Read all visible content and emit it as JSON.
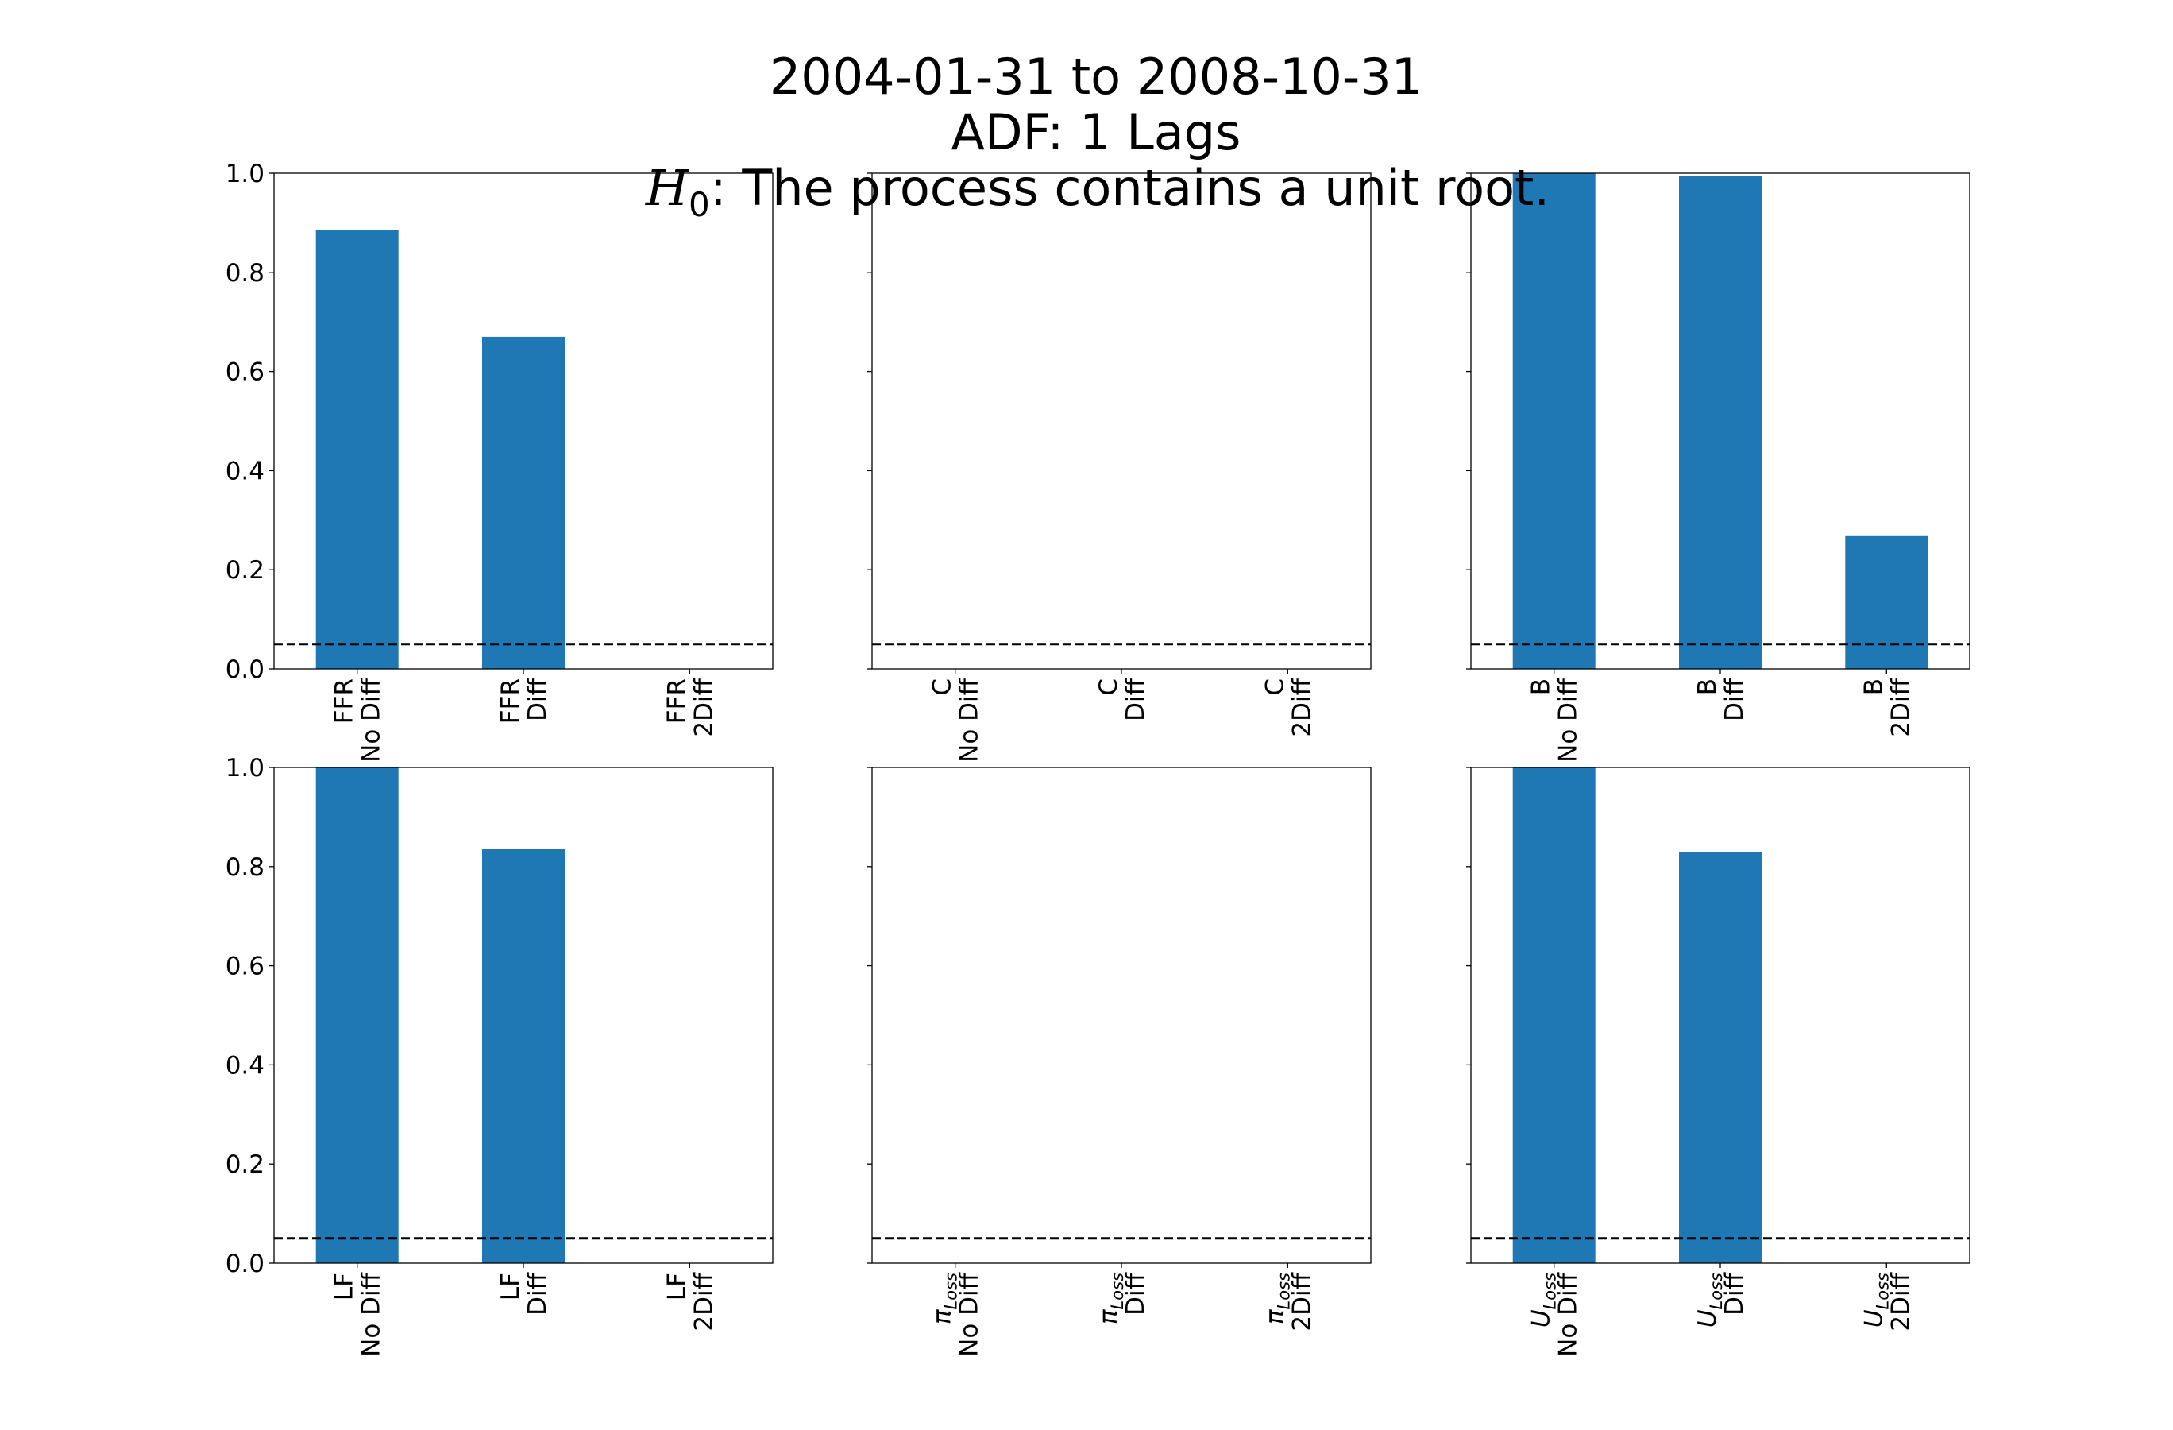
{
  "title": {
    "line1": "2004-01-31 to 2008-10-31",
    "line2": "ADF: 1 Lags",
    "h0_symbol": "H",
    "h0_subscript": "0",
    "h0_text": ": The process contains a unit root."
  },
  "colors": {
    "bar": "#1f77b4",
    "threshold_line": "#000000",
    "axes": "#000000"
  },
  "chart_data": [
    {
      "type": "bar",
      "panel": "top-left",
      "variable": "FFR",
      "var_subscript": "",
      "var_italic": false,
      "categories": [
        {
          "var": "FFR",
          "sub": "",
          "label": "No Diff"
        },
        {
          "var": "FFR",
          "sub": "",
          "label": "Diff"
        },
        {
          "var": "FFR",
          "sub": "",
          "label": "2Diff"
        }
      ],
      "values": [
        0.885,
        0.67,
        0.0
      ],
      "ylim": [
        0.0,
        1.0
      ],
      "yticks": [
        "0.0",
        "0.2",
        "0.4",
        "0.6",
        "0.8",
        "1.0"
      ],
      "show_ytick_labels": true,
      "threshold": 0.05
    },
    {
      "type": "bar",
      "panel": "top-middle",
      "variable": "C",
      "var_subscript": "",
      "var_italic": false,
      "categories": [
        {
          "var": "C",
          "sub": "",
          "label": "No Diff"
        },
        {
          "var": "C",
          "sub": "",
          "label": "Diff"
        },
        {
          "var": "C",
          "sub": "",
          "label": "2Diff"
        }
      ],
      "values": [
        0.0,
        0.0,
        0.0
      ],
      "ylim": [
        0.0,
        1.0
      ],
      "yticks": [
        "0.0",
        "0.2",
        "0.4",
        "0.6",
        "0.8",
        "1.0"
      ],
      "show_ytick_labels": false,
      "threshold": 0.05
    },
    {
      "type": "bar",
      "panel": "top-right",
      "variable": "B",
      "var_subscript": "",
      "var_italic": false,
      "categories": [
        {
          "var": "B",
          "sub": "",
          "label": "No Diff"
        },
        {
          "var": "B",
          "sub": "",
          "label": "Diff"
        },
        {
          "var": "B",
          "sub": "",
          "label": "2Diff"
        }
      ],
      "values": [
        1.0,
        0.995,
        0.268
      ],
      "ylim": [
        0.0,
        1.0
      ],
      "yticks": [
        "0.0",
        "0.2",
        "0.4",
        "0.6",
        "0.8",
        "1.0"
      ],
      "show_ytick_labels": false,
      "threshold": 0.05
    },
    {
      "type": "bar",
      "panel": "bottom-left",
      "variable": "LF",
      "var_subscript": "",
      "var_italic": false,
      "categories": [
        {
          "var": "LF",
          "sub": "",
          "label": "No Diff"
        },
        {
          "var": "LF",
          "sub": "",
          "label": "Diff"
        },
        {
          "var": "LF",
          "sub": "",
          "label": "2Diff"
        }
      ],
      "values": [
        1.0,
        0.835,
        0.0
      ],
      "ylim": [
        0.0,
        1.0
      ],
      "yticks": [
        "0.0",
        "0.2",
        "0.4",
        "0.6",
        "0.8",
        "1.0"
      ],
      "show_ytick_labels": true,
      "threshold": 0.05
    },
    {
      "type": "bar",
      "panel": "bottom-middle",
      "variable": "π",
      "var_subscript": "Loss",
      "var_italic": true,
      "categories": [
        {
          "var": "π",
          "sub": "Loss",
          "label": "No Diff"
        },
        {
          "var": "π",
          "sub": "Loss",
          "label": "Diff"
        },
        {
          "var": "π",
          "sub": "Loss",
          "label": "2Diff"
        }
      ],
      "values": [
        0.0,
        0.0,
        0.0
      ],
      "ylim": [
        0.0,
        1.0
      ],
      "yticks": [
        "0.0",
        "0.2",
        "0.4",
        "0.6",
        "0.8",
        "1.0"
      ],
      "show_ytick_labels": false,
      "threshold": 0.05
    },
    {
      "type": "bar",
      "panel": "bottom-right",
      "variable": "U",
      "var_subscript": "Loss",
      "var_italic": true,
      "categories": [
        {
          "var": "U",
          "sub": "Loss",
          "label": "No Diff"
        },
        {
          "var": "U",
          "sub": "Loss",
          "label": "Diff"
        },
        {
          "var": "U",
          "sub": "Loss",
          "label": "2Diff"
        }
      ],
      "values": [
        1.0,
        0.83,
        0.0
      ],
      "ylim": [
        0.0,
        1.0
      ],
      "yticks": [
        "0.0",
        "0.2",
        "0.4",
        "0.6",
        "0.8",
        "1.0"
      ],
      "show_ytick_labels": false,
      "threshold": 0.05
    }
  ]
}
